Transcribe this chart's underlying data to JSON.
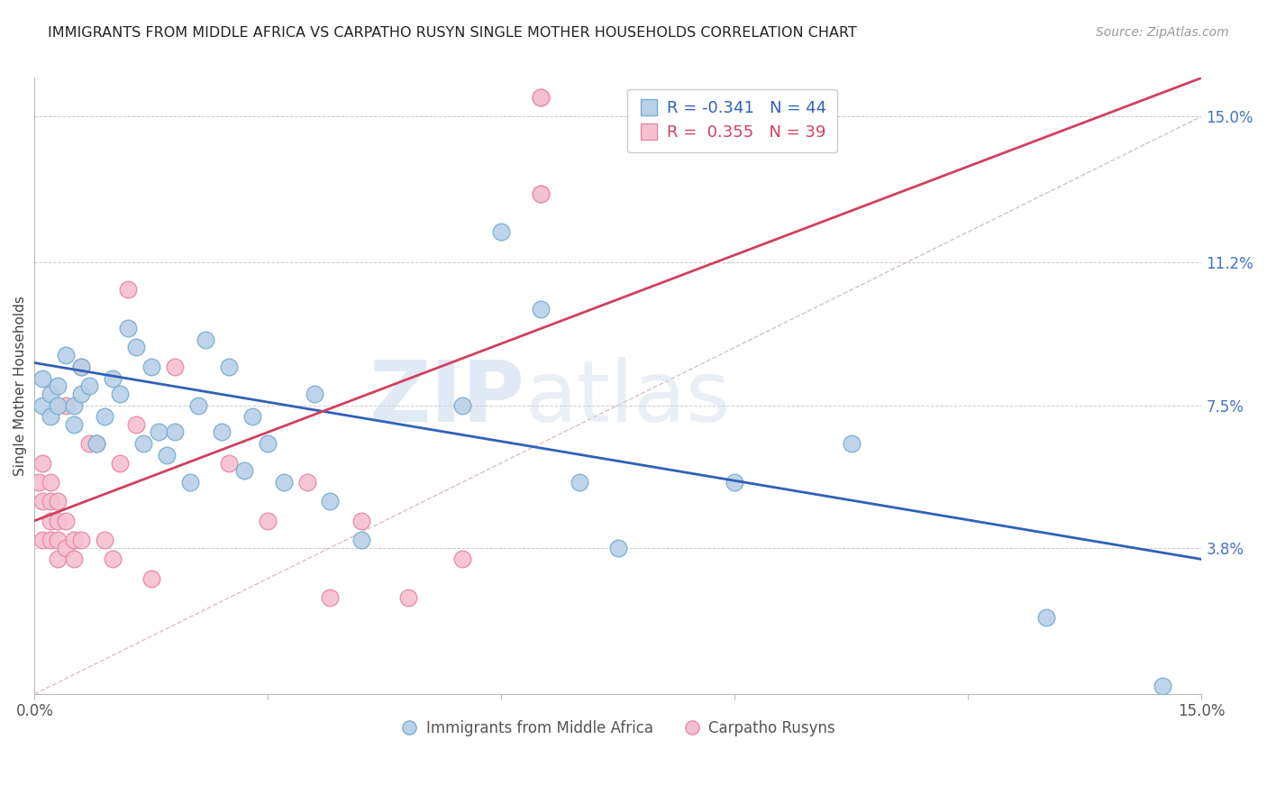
{
  "title": "IMMIGRANTS FROM MIDDLE AFRICA VS CARPATHO RUSYN SINGLE MOTHER HOUSEHOLDS CORRELATION CHART",
  "source": "Source: ZipAtlas.com",
  "ylabel": "Single Mother Households",
  "xmin": 0.0,
  "xmax": 0.15,
  "ymin": 0.0,
  "ymax": 0.16,
  "right_yticks": [
    0.038,
    0.075,
    0.112,
    0.15
  ],
  "right_yticklabels": [
    "3.8%",
    "7.5%",
    "11.2%",
    "15.0%"
  ],
  "blue_color": "#b8d0e8",
  "blue_edge": "#7aaed0",
  "pink_color": "#f5c0d0",
  "pink_edge": "#e888a8",
  "blue_line_color": "#3060b8",
  "pink_line_color": "#d04060",
  "diag_line_color": "#d0b0b8",
  "legend_blue_label": "R = -0.341   N = 44",
  "legend_pink_label": "R =  0.355   N = 39",
  "legend_bottom_blue": "Immigrants from Middle Africa",
  "legend_bottom_pink": "Carpatho Rusyns",
  "watermark_zip": "ZIP",
  "watermark_atlas": "atlas",
  "blue_line_x0": 0.0,
  "blue_line_y0": 0.086,
  "blue_line_x1": 0.15,
  "blue_line_y1": 0.035,
  "pink_line_x0": 0.0,
  "pink_line_y0": 0.045,
  "pink_line_x1": 0.15,
  "pink_line_y1": 0.16,
  "blue_scatter_x": [
    0.001,
    0.001,
    0.002,
    0.002,
    0.003,
    0.003,
    0.004,
    0.005,
    0.005,
    0.006,
    0.006,
    0.007,
    0.008,
    0.009,
    0.01,
    0.011,
    0.012,
    0.013,
    0.014,
    0.015,
    0.016,
    0.017,
    0.018,
    0.02,
    0.021,
    0.022,
    0.024,
    0.025,
    0.027,
    0.028,
    0.03,
    0.032,
    0.036,
    0.038,
    0.042,
    0.055,
    0.06,
    0.065,
    0.07,
    0.075,
    0.09,
    0.105,
    0.13,
    0.145
  ],
  "blue_scatter_y": [
    0.075,
    0.082,
    0.078,
    0.072,
    0.08,
    0.075,
    0.088,
    0.07,
    0.075,
    0.085,
    0.078,
    0.08,
    0.065,
    0.072,
    0.082,
    0.078,
    0.095,
    0.09,
    0.065,
    0.085,
    0.068,
    0.062,
    0.068,
    0.055,
    0.075,
    0.092,
    0.068,
    0.085,
    0.058,
    0.072,
    0.065,
    0.055,
    0.078,
    0.05,
    0.04,
    0.075,
    0.12,
    0.1,
    0.055,
    0.038,
    0.055,
    0.065,
    0.02,
    0.002
  ],
  "pink_scatter_x": [
    0.0005,
    0.001,
    0.001,
    0.001,
    0.002,
    0.002,
    0.002,
    0.002,
    0.003,
    0.003,
    0.003,
    0.003,
    0.004,
    0.004,
    0.004,
    0.005,
    0.005,
    0.006,
    0.006,
    0.007,
    0.008,
    0.009,
    0.01,
    0.011,
    0.012,
    0.013,
    0.015,
    0.018,
    0.025,
    0.03,
    0.035,
    0.038,
    0.042,
    0.048,
    0.055,
    0.065,
    0.065,
    0.065,
    0.065
  ],
  "pink_scatter_y": [
    0.055,
    0.06,
    0.05,
    0.04,
    0.04,
    0.045,
    0.05,
    0.055,
    0.035,
    0.04,
    0.045,
    0.05,
    0.038,
    0.045,
    0.075,
    0.035,
    0.04,
    0.04,
    0.085,
    0.065,
    0.065,
    0.04,
    0.035,
    0.06,
    0.105,
    0.07,
    0.03,
    0.085,
    0.06,
    0.045,
    0.055,
    0.025,
    0.045,
    0.025,
    0.035,
    0.13,
    0.13,
    0.155,
    0.155
  ]
}
